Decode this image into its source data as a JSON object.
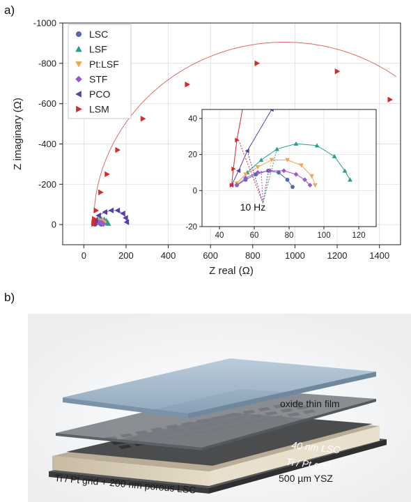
{
  "figure": {
    "panel_a_label": "a)",
    "panel_b_label": "b)"
  },
  "chart_data": [
    {
      "type": "scatter",
      "title": "",
      "xlabel": "Z real (Ω)",
      "ylabel": "Z imaginary (Ω)",
      "xlim": [
        -100,
        1500
      ],
      "ylim": [
        -1000,
        100
      ],
      "y_inverted": true,
      "xticks": [
        0,
        200,
        400,
        600,
        800,
        1000,
        1200,
        1400
      ],
      "yticks": [
        0,
        -200,
        -400,
        -600,
        -800,
        -1000
      ],
      "grid": true,
      "legend_position": "top-left",
      "series": [
        {
          "name": "LSC",
          "color": "#5868b0",
          "marker": "circle",
          "points": [
            [
              50,
              -3
            ],
            [
              55,
              -6
            ],
            [
              61,
              -9
            ],
            [
              68,
              -11
            ],
            [
              74,
              -10
            ],
            [
              79,
              -6
            ],
            [
              82,
              -2
            ]
          ]
        },
        {
          "name": "LSF",
          "color": "#2a9d8f",
          "marker": "triangle-up",
          "points": [
            [
              50,
              -4
            ],
            [
              56,
              -10
            ],
            [
              64,
              -17
            ],
            [
              73,
              -23
            ],
            [
              84,
              -26
            ],
            [
              96,
              -25
            ],
            [
              106,
              -19
            ],
            [
              112,
              -11
            ],
            [
              115,
              -6
            ]
          ]
        },
        {
          "name": "Pt:LSF",
          "color": "#f2a65a",
          "marker": "triangle-down",
          "points": [
            [
              50,
              -4
            ],
            [
              55,
              -9
            ],
            [
              62,
              -13
            ],
            [
              70,
              -17
            ],
            [
              79,
              -17
            ],
            [
              87,
              -14
            ],
            [
              93,
              -8
            ],
            [
              95,
              -3
            ]
          ]
        },
        {
          "name": "STF",
          "color": "#9b59c9",
          "marker": "diamond",
          "points": [
            [
              50,
              -3
            ],
            [
              55,
              -7
            ],
            [
              62,
              -10
            ],
            [
              69,
              -11
            ],
            [
              77,
              -11
            ],
            [
              84,
              -9
            ],
            [
              89,
              -6
            ],
            [
              92,
              -3
            ]
          ]
        },
        {
          "name": "PCO",
          "color": "#5a3ea8",
          "marker": "triangle-left",
          "points": [
            [
              47,
              -3
            ],
            [
              51,
              -11
            ],
            [
              56,
              -22
            ],
            [
              70,
              -45
            ],
            [
              100,
              -62
            ],
            [
              130,
              -70
            ],
            [
              160,
              -70
            ],
            [
              185,
              -55
            ],
            [
              198,
              -33
            ],
            [
              203,
              -12
            ]
          ]
        },
        {
          "name": "LSM",
          "color": "#d42a2a",
          "marker": "triangle-right",
          "points": [
            [
              47,
              -3
            ],
            [
              48,
              -12
            ],
            [
              50,
              -28
            ],
            [
              58,
              -70
            ],
            [
              80,
              -160
            ],
            [
              110,
              -250
            ],
            [
              160,
              -370
            ],
            [
              280,
              -525
            ],
            [
              490,
              -695
            ],
            [
              820,
              -800
            ],
            [
              1200,
              -760
            ],
            [
              1450,
              -620
            ]
          ]
        }
      ],
      "fit_curves": [
        {
          "series": "LSM",
          "center": [
            950,
            0
          ],
          "radius": 905,
          "x_range": [
            47,
            1480
          ]
        }
      ]
    },
    {
      "type": "scatter",
      "title": "",
      "inset": true,
      "xlim": [
        30,
        130
      ],
      "ylim": [
        -20,
        45
      ],
      "xticks": [
        40,
        60,
        80,
        100,
        120
      ],
      "yticks": [
        -20,
        0,
        20,
        40
      ],
      "annotation": "10 Hz",
      "annotation_points": [
        {
          "series": "LSM",
          "x": 51,
          "y": 28
        },
        {
          "series": "PCO",
          "x": 56,
          "y": 22
        },
        {
          "series": "STF",
          "x": 64,
          "y": 11
        },
        {
          "series": "Pt:LSF",
          "x": 70,
          "y": 17
        },
        {
          "series": "LSF",
          "x": 73,
          "y": 23
        },
        {
          "series": "LSC",
          "x": 68,
          "y": 11
        }
      ],
      "annotation_target": [
        65,
        -7
      ]
    }
  ],
  "diagram": {
    "layers": [
      {
        "label": "oxide thin film",
        "color": "#9cb3c9"
      },
      {
        "label": "40 nm LSC",
        "color": "#6f7478"
      },
      {
        "label": "Ti / Pt grid",
        "color": "#3f4245"
      },
      {
        "label": "500 µm YSZ",
        "color": "#d6cbb6"
      },
      {
        "label": "Ti / Pt grid + 200 nm porous LSC",
        "color": "#4a4b4c"
      }
    ]
  }
}
